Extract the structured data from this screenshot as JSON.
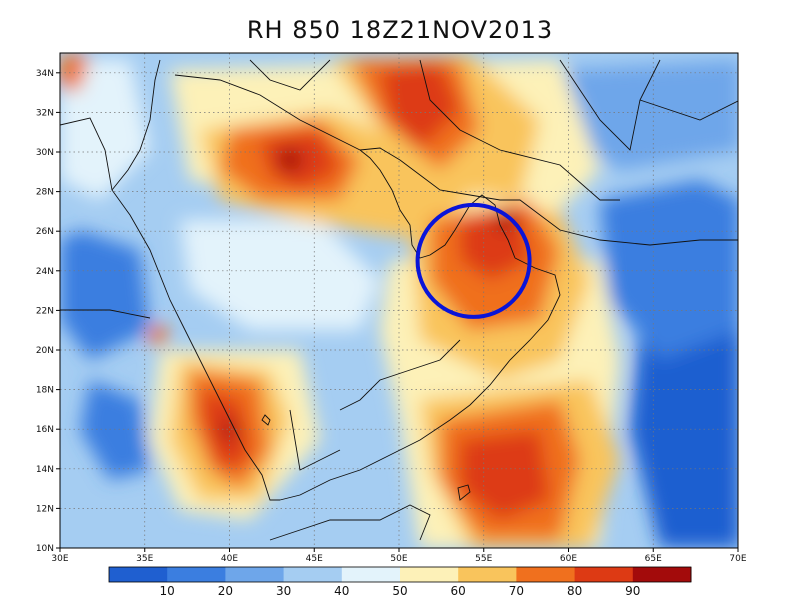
{
  "title": "RH 850 18Z21NOV2013",
  "map": {
    "lat_labels": [
      "34N",
      "32N",
      "30N",
      "28N",
      "26N",
      "24N",
      "22N",
      "20N",
      "18N",
      "16N",
      "14N",
      "12N",
      "10N"
    ],
    "lon_labels": [
      "30E",
      "35E",
      "40E",
      "45E",
      "50E",
      "55E",
      "60E",
      "65E",
      "70E"
    ],
    "lat_range": [
      10,
      35
    ],
    "lon_range": [
      30,
      70
    ],
    "grid": "dotted",
    "highlight_circle": {
      "center_lon": 54.4,
      "center_lat": 24.5,
      "color": "#0a14d8"
    }
  },
  "colorbar": {
    "labels": [
      "10",
      "20",
      "30",
      "40",
      "50",
      "60",
      "70",
      "80",
      "90"
    ],
    "colors": [
      "#1f5fd0",
      "#3b7ee0",
      "#6ea6ea",
      "#a5cdf2",
      "#e3f3fb",
      "#fdf1b8",
      "#f9c45c",
      "#f0701e",
      "#dd3a14",
      "#a30b0b"
    ]
  }
}
